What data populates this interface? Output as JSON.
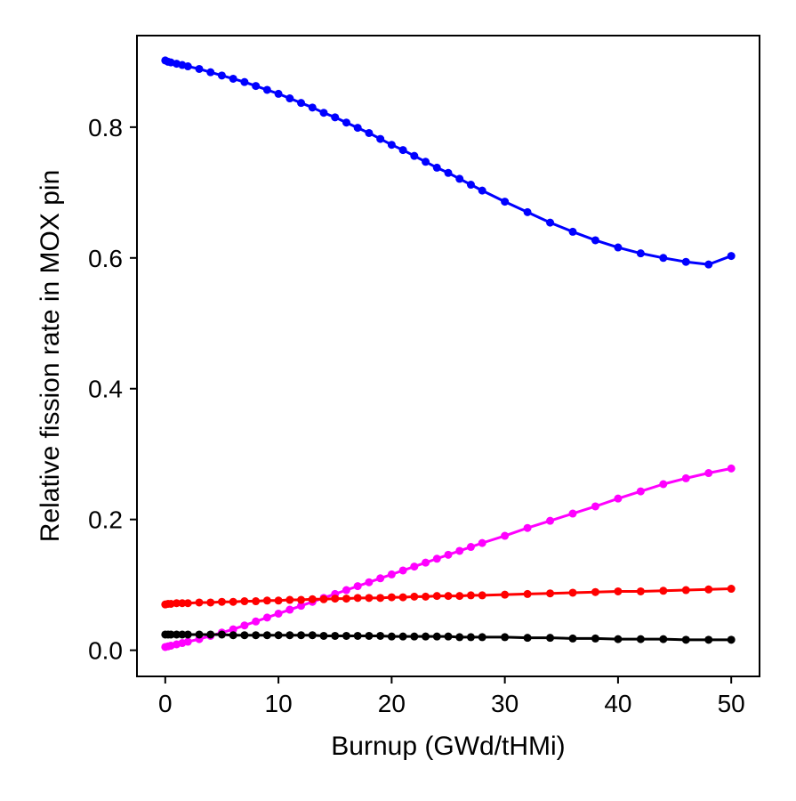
{
  "chart_data": {
    "type": "line",
    "title": "",
    "xlabel": "Burnup (GWd/tHMi)",
    "ylabel": "Relative fission rate in MOX pin",
    "xlim": [
      -2.5,
      52.5
    ],
    "ylim": [
      -0.04,
      0.94
    ],
    "xticks": [
      0,
      10,
      20,
      30,
      40,
      50
    ],
    "xtick_labels": [
      "0",
      "10",
      "20",
      "30",
      "40",
      "50"
    ],
    "yticks": [
      0.0,
      0.2,
      0.4,
      0.6,
      0.8
    ],
    "ytick_labels": [
      "0.0",
      "0.2",
      "0.4",
      "0.6",
      "0.8"
    ],
    "grid": false,
    "legend": null,
    "x": [
      0,
      0.25,
      0.5,
      1,
      1.5,
      2,
      3,
      4,
      5,
      6,
      7,
      8,
      9,
      10,
      11,
      12,
      13,
      14,
      15,
      16,
      17,
      18,
      19,
      20,
      21,
      22,
      23,
      24,
      25,
      26,
      27,
      28,
      30,
      32,
      34,
      36,
      38,
      40,
      42,
      44,
      46,
      48,
      50
    ],
    "series": [
      {
        "name": "blue",
        "color": "#0000ff",
        "values": [
          0.902,
          0.9,
          0.899,
          0.897,
          0.895,
          0.893,
          0.889,
          0.884,
          0.879,
          0.874,
          0.869,
          0.863,
          0.857,
          0.851,
          0.844,
          0.837,
          0.83,
          0.822,
          0.815,
          0.807,
          0.799,
          0.791,
          0.782,
          0.773,
          0.765,
          0.756,
          0.747,
          0.738,
          0.73,
          0.721,
          0.712,
          0.703,
          0.686,
          0.67,
          0.654,
          0.64,
          0.627,
          0.616,
          0.607,
          0.6,
          0.594,
          0.59,
          0.603
        ]
      },
      {
        "name": "magenta",
        "color": "#ff00ff",
        "values": [
          0.005,
          0.006,
          0.007,
          0.009,
          0.011,
          0.013,
          0.017,
          0.022,
          0.027,
          0.032,
          0.038,
          0.044,
          0.05,
          0.056,
          0.062,
          0.068,
          0.074,
          0.08,
          0.086,
          0.092,
          0.098,
          0.104,
          0.11,
          0.116,
          0.122,
          0.128,
          0.134,
          0.14,
          0.146,
          0.152,
          0.158,
          0.164,
          0.175,
          0.187,
          0.198,
          0.209,
          0.22,
          0.232,
          0.243,
          0.254,
          0.263,
          0.271,
          0.278
        ]
      },
      {
        "name": "red",
        "color": "#ff0000",
        "values": [
          0.07,
          0.071,
          0.071,
          0.072,
          0.072,
          0.072,
          0.073,
          0.073,
          0.074,
          0.074,
          0.075,
          0.075,
          0.076,
          0.076,
          0.077,
          0.077,
          0.078,
          0.078,
          0.079,
          0.079,
          0.08,
          0.08,
          0.08,
          0.081,
          0.081,
          0.082,
          0.082,
          0.083,
          0.083,
          0.083,
          0.084,
          0.084,
          0.085,
          0.086,
          0.087,
          0.088,
          0.089,
          0.09,
          0.09,
          0.091,
          0.092,
          0.093,
          0.094
        ]
      },
      {
        "name": "black",
        "color": "#000000",
        "values": [
          0.024,
          0.024,
          0.024,
          0.024,
          0.024,
          0.024,
          0.024,
          0.024,
          0.024,
          0.023,
          0.023,
          0.023,
          0.023,
          0.023,
          0.023,
          0.023,
          0.023,
          0.022,
          0.022,
          0.022,
          0.022,
          0.022,
          0.022,
          0.021,
          0.021,
          0.021,
          0.021,
          0.021,
          0.021,
          0.02,
          0.02,
          0.02,
          0.02,
          0.019,
          0.019,
          0.018,
          0.018,
          0.017,
          0.017,
          0.017,
          0.016,
          0.016,
          0.016
        ]
      }
    ]
  }
}
